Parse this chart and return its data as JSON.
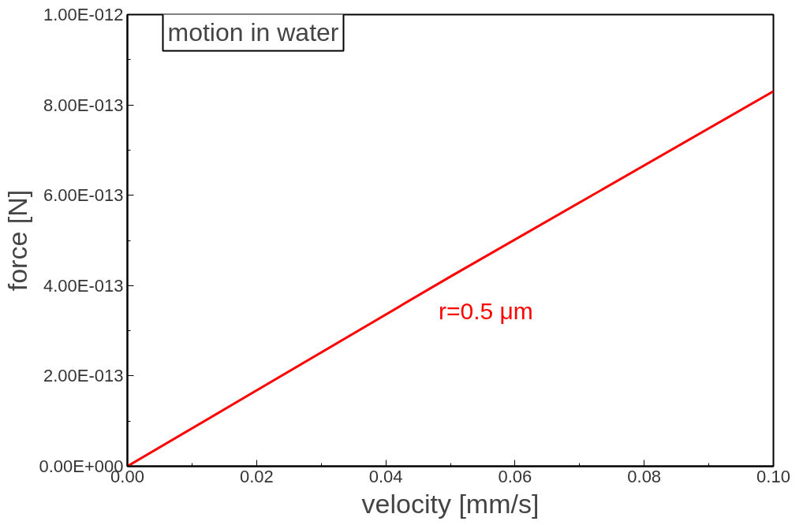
{
  "chart_data": {
    "type": "line",
    "xlabel": "velocity [mm/s]",
    "ylabel": "force [N]",
    "annotations": [
      "motion in water"
    ],
    "x": [
      0,
      0.05,
      0.1
    ],
    "series": [
      {
        "name": "r=0.5 μm",
        "color": "#ff0000",
        "values": [
          0,
          4.2e-13,
          8.3e-13
        ]
      }
    ],
    "xlim": [
      0,
      0.1
    ],
    "xticks": [
      {
        "value": 0,
        "label": "0.00"
      },
      {
        "value": 0.02,
        "label": "0.02"
      },
      {
        "value": 0.04,
        "label": "0.04"
      },
      {
        "value": 0.06,
        "label": "0.06"
      },
      {
        "value": 0.08,
        "label": "0.08"
      },
      {
        "value": 0.1,
        "label": "0.10"
      }
    ],
    "ylim": [
      0,
      1e-12
    ],
    "yticks": [
      {
        "value": 0,
        "label": "0.00E+000"
      },
      {
        "value": 2e-13,
        "label": "2.00E-013"
      },
      {
        "value": 4e-13,
        "label": "4.00E-013"
      },
      {
        "value": 6e-13,
        "label": "6.00E-013"
      },
      {
        "value": 8e-13,
        "label": "8.00E-013"
      },
      {
        "value": 1e-12,
        "label": "1.00E-012"
      }
    ],
    "grid": false,
    "legend": false,
    "marker": "none",
    "line_style": "solid"
  }
}
